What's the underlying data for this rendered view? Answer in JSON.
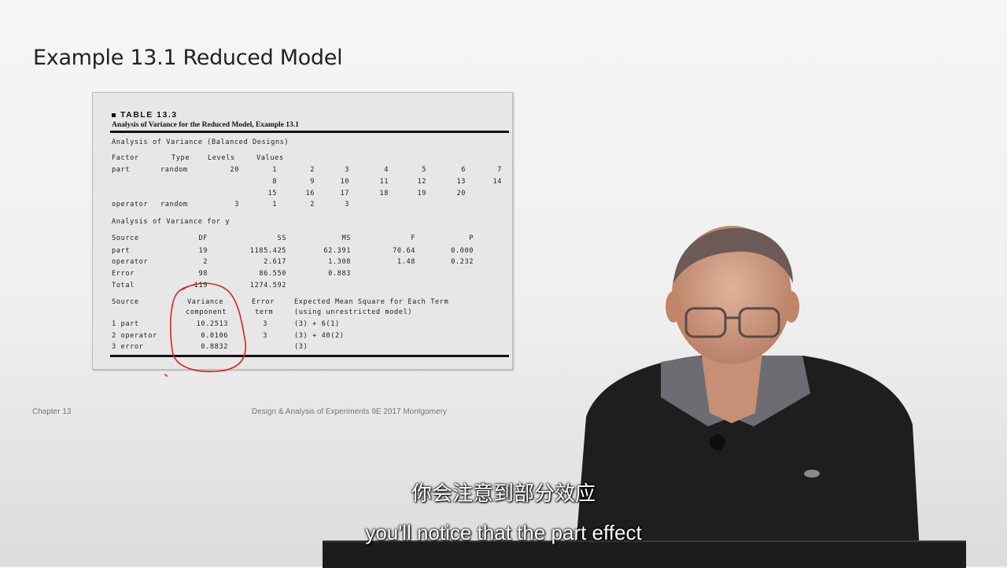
{
  "slide": {
    "title": "Example 13.1  Reduced Model",
    "chapter": "Chapter 13",
    "footer": "Design & Analysis of Experiments 9E 2017 Montgomery"
  },
  "table": {
    "label": "TABLE 13.3",
    "caption": "Analysis of Variance for the Reduced Model, Example 13.1",
    "heading": "Analysis of Variance (Balanced Designs)",
    "factor_header": {
      "factor": "Factor",
      "type": "Type",
      "levels": "Levels",
      "values": "Values"
    },
    "factors": [
      {
        "name": "part",
        "type": "random",
        "levels": "20",
        "value_rows": [
          [
            "1",
            "2",
            "3",
            "4",
            "5",
            "6",
            "7"
          ],
          [
            "8",
            "9",
            "10",
            "11",
            "12",
            "13",
            "14"
          ],
          [
            "15",
            "16",
            "17",
            "18",
            "19",
            "20"
          ]
        ]
      },
      {
        "name": "operator",
        "type": "random",
        "levels": "3",
        "value_rows": [
          [
            "1",
            "2",
            "3"
          ]
        ]
      }
    ],
    "anova_heading": "Analysis of Variance for y",
    "anova_header": {
      "source": "Source",
      "df": "DF",
      "ss": "SS",
      "ms": "MS",
      "f": "F",
      "p": "P"
    },
    "anova_rows": [
      {
        "source": "part",
        "df": "19",
        "ss": "1185.425",
        "ms": "62.391",
        "f": "70.64",
        "p": "0.000"
      },
      {
        "source": "operator",
        "df": "2",
        "ss": "2.617",
        "ms": "1.308",
        "f": "1.48",
        "p": "0.232"
      },
      {
        "source": "Error",
        "df": "98",
        "ss": "86.550",
        "ms": "0.883",
        "f": "",
        "p": ""
      },
      {
        "source": "Total",
        "df": "119",
        "ss": "1274.592",
        "ms": "",
        "f": "",
        "p": ""
      }
    ],
    "vc_header": {
      "source": "Source",
      "variance_1": "Variance",
      "variance_2": "component",
      "error_1": "Error",
      "error_2": "term",
      "ems_1": "Expected Mean Square for Each Term",
      "ems_2": "(using unrestricted model)"
    },
    "vc_rows": [
      {
        "source": "1 part",
        "component": "10.2513",
        "error_term": "3",
        "ems": "(3) + 6(1)"
      },
      {
        "source": "2 operator",
        "component": "0.0106",
        "error_term": "3",
        "ems": "(3) + 40(2)"
      },
      {
        "source": "3 error",
        "component": "0.8832",
        "error_term": "",
        "ems": "(3)"
      }
    ]
  },
  "annotation": {
    "color": "#e02020"
  },
  "subtitles": {
    "chinese": "你会注意到部分效应",
    "english": "you'll notice that the part effect"
  }
}
